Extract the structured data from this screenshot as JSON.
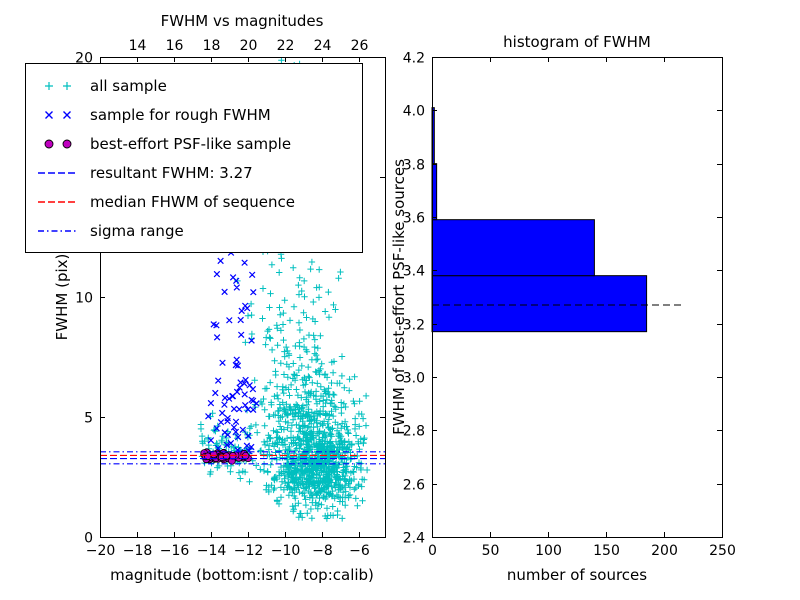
{
  "figure": {
    "background": "#ffffff",
    "axis_color": "#000000"
  },
  "legend": {
    "items": [
      {
        "label": "all sample",
        "type": "scatter",
        "marker": "plus",
        "color": "#00bfbf"
      },
      {
        "label": "sample for rough FWHM",
        "type": "scatter",
        "marker": "x",
        "color": "#0000ff"
      },
      {
        "label": "best-effort PSF-like sample",
        "type": "scatter",
        "marker": "circle",
        "color": "#bf00bf",
        "edge": "#000000"
      },
      {
        "label": "resultant FWHM: 3.27",
        "type": "line",
        "style": "dashed",
        "color": "#0000ff"
      },
      {
        "label": "median FHWM of sequence",
        "type": "line",
        "style": "dashed",
        "color": "#ff0000"
      },
      {
        "label": "sigma range",
        "type": "line",
        "style": "dashdot",
        "color": "#0000ff"
      }
    ]
  },
  "chart_data": [
    {
      "type": "scatter",
      "title": "FWHM vs magnitudes",
      "xlabel": "magnitude (bottom:isnt / top:calib)",
      "ylabel": "FWHM (pix)",
      "xlim": [
        -20,
        -4.6
      ],
      "ylim": [
        0,
        20
      ],
      "x_ticks": [
        -20,
        -18,
        -16,
        -14,
        -12,
        -10,
        -8,
        -6
      ],
      "y_ticks": [
        0,
        5,
        10,
        15,
        20
      ],
      "top_axis_ticks": [
        14,
        16,
        18,
        20,
        22,
        24,
        26
      ],
      "top_axis_offset": 32,
      "grid": false,
      "seed": 42,
      "series": [
        {
          "name": "all sample",
          "marker": "plus",
          "color": "#00bfbf",
          "clusters": [
            {
              "n": 950,
              "mag": {
                "dist": "normal",
                "mean": -8.3,
                "sd": 1.35,
                "min": -12.2,
                "max": -5.5
              },
              "fwhm": {
                "dist": "lognormal",
                "mu": 1.2,
                "sigma": 0.33,
                "min": 1.0,
                "max": 20
              }
            },
            {
              "n": 270,
              "mag": {
                "dist": "normal",
                "mean": -9.4,
                "sd": 1.25,
                "min": -12.6,
                "max": -6.2
              },
              "fwhm": {
                "dist": "power",
                "min": 5,
                "max": 20,
                "k": 1.7
              }
            },
            {
              "n": 85,
              "mag": {
                "dist": "uniform",
                "min": -14.6,
                "max": -11.9
              },
              "fwhm": {
                "dist": "normal",
                "mean": 3.5,
                "sd": 0.6,
                "min": 2.3,
                "max": 5.6
              }
            },
            {
              "n": 55,
              "mag": {
                "dist": "normal",
                "mean": -8.0,
                "sd": 1.5,
                "min": -11.5,
                "max": -5.6
              },
              "fwhm": {
                "dist": "uniform",
                "min": 0.7,
                "max": 2.3
              }
            }
          ]
        },
        {
          "name": "sample for rough FWHM",
          "marker": "x",
          "color": "#0000ff",
          "clusters": [
            {
              "n": 48,
              "mag": {
                "dist": "uniform",
                "min": -14.2,
                "max": -11.5
              },
              "fwhm": {
                "dist": "normal",
                "mean": 4.7,
                "sd": 1.1,
                "min": 3.2,
                "max": 7.6
              }
            },
            {
              "n": 26,
              "mag": {
                "dist": "uniform",
                "min": -13.9,
                "max": -11.7
              },
              "fwhm": {
                "dist": "power",
                "min": 6,
                "max": 12,
                "k": 1.15
              }
            }
          ]
        },
        {
          "name": "best-effort PSF-like sample",
          "marker": "circle",
          "color": "#bf00bf",
          "edge": "#000000",
          "clusters": [
            {
              "n": 55,
              "mag": {
                "dist": "uniform",
                "min": -14.4,
                "max": -11.9
              },
              "fwhm": {
                "dist": "normal",
                "mean": 3.35,
                "sd": 0.08,
                "min": 3.1,
                "max": 3.6
              }
            }
          ]
        }
      ],
      "lines": [
        {
          "name": "resultant FWHM: 3.27",
          "y": 3.27,
          "style": "dashed",
          "color": "#0000ff"
        },
        {
          "name": "median FHWM of sequence",
          "y": 3.4,
          "style": "dashed",
          "color": "#ff0000"
        },
        {
          "name": "sigma range low",
          "y": 3.05,
          "style": "dashdot",
          "color": "#0000ff"
        },
        {
          "name": "sigma range high",
          "y": 3.55,
          "style": "dashdot",
          "color": "#0000ff"
        }
      ]
    },
    {
      "type": "bar",
      "orientation": "horizontal",
      "title": "histogram of FWHM",
      "xlabel": "number of sources",
      "ylabel": "FWHM of best-effort PSF-like sources",
      "xlim": [
        0,
        250
      ],
      "ylim": [
        2.4,
        4.2
      ],
      "x_ticks": [
        0,
        50,
        100,
        150,
        200,
        250
      ],
      "y_ticks": [
        2.4,
        2.6,
        2.8,
        3.0,
        3.2,
        3.4,
        3.6,
        3.8,
        4.0,
        4.2
      ],
      "grid": false,
      "bar_color": "#0000ff",
      "bar_edge": "#000000",
      "bins": [
        {
          "from": 3.17,
          "to": 3.38,
          "count": 185
        },
        {
          "from": 3.38,
          "to": 3.59,
          "count": 140
        },
        {
          "from": 3.59,
          "to": 3.8,
          "count": 4
        },
        {
          "from": 3.8,
          "to": 4.01,
          "count": 2
        }
      ],
      "dashed_line": {
        "y": 3.27,
        "x_start": 0,
        "x_end": 215,
        "color": "#000000"
      }
    }
  ]
}
